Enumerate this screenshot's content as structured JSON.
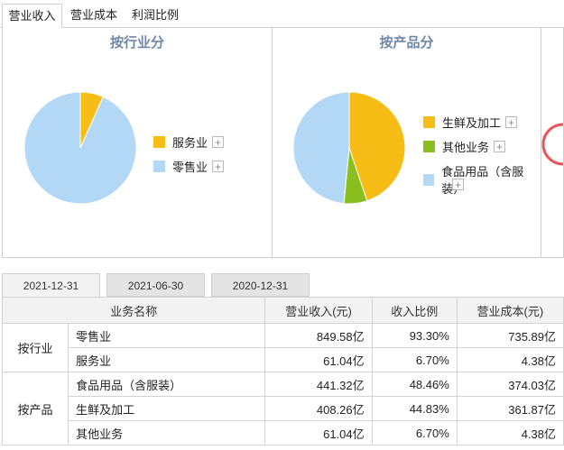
{
  "top_tabs": [
    {
      "label": "营业收入",
      "active": true
    },
    {
      "label": "营业成本",
      "active": false
    },
    {
      "label": "利润比例",
      "active": false
    }
  ],
  "charts": [
    {
      "title": "按行业分",
      "legend": [
        {
          "label": "服务业",
          "color": "#f6bd16"
        },
        {
          "label": "零售业",
          "color": "#b3d8f6"
        }
      ]
    },
    {
      "title": "按产品分",
      "legend": [
        {
          "label": "生鲜及加工",
          "color": "#f6bd16"
        },
        {
          "label": "其他业务",
          "color": "#8bbf1f"
        },
        {
          "label": "食品用品（含服装）",
          "color": "#b3d8f6"
        }
      ]
    }
  ],
  "chart_data": [
    {
      "type": "pie",
      "title": "按行业分",
      "labels": [
        "服务业",
        "零售业"
      ],
      "values": [
        6.7,
        93.3
      ],
      "colors": [
        "#f6bd16",
        "#b3d8f6"
      ]
    },
    {
      "type": "pie",
      "title": "按产品分",
      "labels": [
        "生鲜及加工",
        "其他业务",
        "食品用品（含服装）"
      ],
      "values": [
        44.83,
        6.7,
        48.46
      ],
      "colors": [
        "#f6bd16",
        "#8bbf1f",
        "#b3d8f6"
      ]
    }
  ],
  "plus_label": "+",
  "date_tabs": [
    {
      "label": "2021-12-31",
      "active": true
    },
    {
      "label": "2021-06-30",
      "active": false
    },
    {
      "label": "2020-12-31",
      "active": false
    }
  ],
  "table": {
    "headers": [
      "业务名称",
      "营业收入(元)",
      "收入比例",
      "营业成本(元)"
    ],
    "groups": [
      {
        "label": "按行业",
        "rows": [
          {
            "name": "零售业",
            "revenue": "849.58亿",
            "ratio": "93.30%",
            "cost": "735.89亿"
          },
          {
            "name": "服务业",
            "revenue": "61.04亿",
            "ratio": "6.70%",
            "cost": "4.38亿"
          }
        ]
      },
      {
        "label": "按产品",
        "rows": [
          {
            "name": "食品用品（含服装）",
            "revenue": "441.32亿",
            "ratio": "48.46%",
            "cost": "374.03亿"
          },
          {
            "name": "生鲜及加工",
            "revenue": "408.26亿",
            "ratio": "44.83%",
            "cost": "361.87亿"
          },
          {
            "name": "其他业务",
            "revenue": "61.04亿",
            "ratio": "6.70%",
            "cost": "4.38亿"
          }
        ]
      }
    ]
  }
}
